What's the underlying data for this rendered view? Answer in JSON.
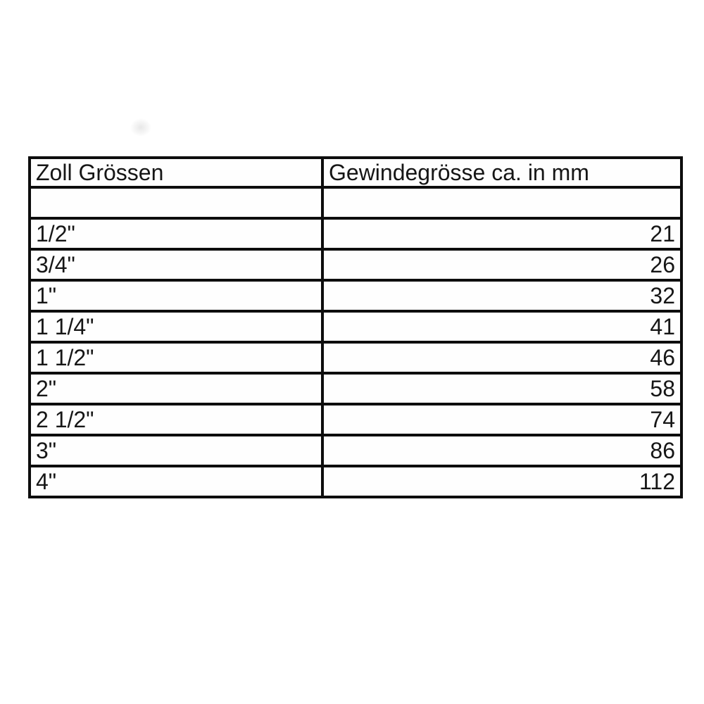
{
  "canvas": {
    "background": "#ffffff",
    "border_color": "#0d0d0d",
    "text_color": "#161616"
  },
  "table": {
    "columns": [
      {
        "label": "Zoll Grössen"
      },
      {
        "label": "Gewindegrösse ca. in mm"
      }
    ],
    "rows": [
      {
        "zoll": "",
        "mm": ""
      },
      {
        "zoll": "1/2\"",
        "mm": "21"
      },
      {
        "zoll": "3/4\"",
        "mm": "26"
      },
      {
        "zoll": "1\"",
        "mm": "32"
      },
      {
        "zoll": "1 1/4\"",
        "mm": "41"
      },
      {
        "zoll": "1 1/2\"",
        "mm": "46"
      },
      {
        "zoll": "2\"",
        "mm": "58"
      },
      {
        "zoll": "2 1/2\"",
        "mm": "74"
      },
      {
        "zoll": "3\"",
        "mm": "86"
      },
      {
        "zoll": "4\"",
        "mm": "112"
      }
    ]
  },
  "chart_data": {
    "type": "table",
    "title": "",
    "columns": [
      "Zoll Grössen",
      "Gewindegrösse ca. in mm"
    ],
    "rows": [
      [
        "1/2\"",
        21
      ],
      [
        "3/4\"",
        26
      ],
      [
        "1\"",
        32
      ],
      [
        "1 1/4\"",
        41
      ],
      [
        "1 1/2\"",
        46
      ],
      [
        "2\"",
        58
      ],
      [
        "2 1/2\"",
        74
      ],
      [
        "3\"",
        86
      ],
      [
        "4\"",
        112
      ]
    ],
    "layout": {
      "header_row": true,
      "first_data_row_empty": true,
      "value_alignment": "right"
    }
  }
}
